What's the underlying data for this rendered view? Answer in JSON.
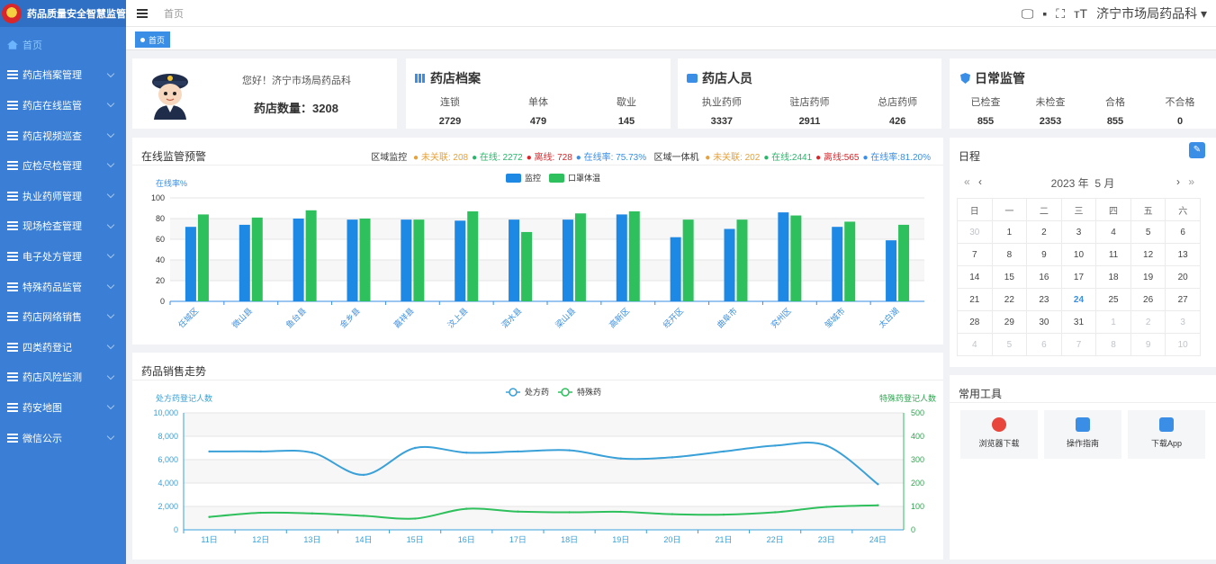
{
  "app": {
    "title": "药品质量安全智慧监管"
  },
  "sidebar": {
    "items": [
      {
        "label": "首页",
        "icon": "home-icon",
        "active": true
      },
      {
        "label": "药店档案管理",
        "icon": "list-icon"
      },
      {
        "label": "药店在线监管",
        "icon": "list-icon"
      },
      {
        "label": "药店视频巡查",
        "icon": "list-icon"
      },
      {
        "label": "应检尽检管理",
        "icon": "list-icon"
      },
      {
        "label": "执业药师管理",
        "icon": "list-icon"
      },
      {
        "label": "现场检查管理",
        "icon": "list-icon"
      },
      {
        "label": "电子处方管理",
        "icon": "list-icon"
      },
      {
        "label": "特殊药品监管",
        "icon": "list-icon"
      },
      {
        "label": "药店网络销售",
        "icon": "list-icon"
      },
      {
        "label": "四类药登记",
        "icon": "list-icon"
      },
      {
        "label": "药店风险监测",
        "icon": "list-icon"
      },
      {
        "label": "药安地图",
        "icon": "list-icon"
      },
      {
        "label": "微信公示",
        "icon": "list-icon"
      }
    ]
  },
  "header": {
    "breadcrumb": "首页",
    "user": "济宁市场局药品科",
    "active_tab": "首页"
  },
  "welcome": {
    "greeting": "您好！济宁市场局药品科",
    "store_count_label": "药店数量：",
    "store_count": "3208"
  },
  "archive": {
    "title": "药店档案",
    "stats": [
      {
        "label": "连锁",
        "value": "2729"
      },
      {
        "label": "单体",
        "value": "479"
      },
      {
        "label": "歇业",
        "value": "145"
      }
    ]
  },
  "staff": {
    "title": "药店人员",
    "stats": [
      {
        "label": "执业药师",
        "value": "3337"
      },
      {
        "label": "驻店药师",
        "value": "2911"
      },
      {
        "label": "总店药师",
        "value": "426"
      }
    ]
  },
  "daily": {
    "title": "日常监管",
    "stats": [
      {
        "label": "已检查",
        "value": "855"
      },
      {
        "label": "未检查",
        "value": "2353"
      },
      {
        "label": "合格",
        "value": "855"
      },
      {
        "label": "不合格",
        "value": "0"
      }
    ]
  },
  "online": {
    "title": "在线监管预警",
    "region_label": "区域监控",
    "region": {
      "unlinked": "未关联: 208",
      "online": "在线: 2272",
      "offline": "离线: 728",
      "rate": "在线率: 75.73%"
    },
    "device_label": "区域一体机",
    "device": {
      "unlinked": "未关联: 202",
      "online": "在线:2441",
      "offline": "离线:565",
      "rate": "在线率:81.20%"
    },
    "colors": {
      "unlinked": "#e6a23c",
      "online": "#2ab56b",
      "offline": "#d8262a",
      "rate": "#3a8ee6"
    }
  },
  "sales": {
    "title": "药品销售走势"
  },
  "schedule": {
    "title": "日程",
    "year_label": "2023 年",
    "month_label": "5 月",
    "weekdays": [
      "日",
      "一",
      "二",
      "三",
      "四",
      "五",
      "六"
    ],
    "weeks": [
      [
        "30",
        "1",
        "2",
        "3",
        "4",
        "5",
        "6"
      ],
      [
        "7",
        "8",
        "9",
        "10",
        "11",
        "12",
        "13"
      ],
      [
        "14",
        "15",
        "16",
        "17",
        "18",
        "19",
        "20"
      ],
      [
        "21",
        "22",
        "23",
        "24",
        "25",
        "26",
        "27"
      ],
      [
        "28",
        "29",
        "30",
        "31",
        "1",
        "2",
        "3"
      ],
      [
        "4",
        "5",
        "6",
        "7",
        "8",
        "9",
        "10"
      ]
    ],
    "today": "24"
  },
  "tools": {
    "title": "常用工具",
    "items": [
      {
        "label": "浏览器下载",
        "icon": "chrome-icon",
        "color": "#e8453c"
      },
      {
        "label": "操作指南",
        "icon": "doc-icon",
        "color": "#3a8ee6"
      },
      {
        "label": "下载App",
        "icon": "app-icon",
        "color": "#3a8ee6"
      }
    ]
  },
  "chart_data": [
    {
      "type": "bar",
      "title": "",
      "ylabel": "在线率%",
      "ylim": [
        0,
        100
      ],
      "yticks": [
        0,
        20,
        40,
        60,
        80,
        100
      ],
      "legend": "top-center",
      "categories": [
        "任城区",
        "微山县",
        "鱼台县",
        "金乡县",
        "嘉祥县",
        "汶上县",
        "泗水县",
        "梁山县",
        "高新区",
        "经开区",
        "曲阜市",
        "兖州区",
        "邹城市",
        "太白湖"
      ],
      "series": [
        {
          "name": "监控",
          "color": "#1e88e5",
          "values": [
            72,
            74,
            80,
            79,
            79,
            78,
            79,
            79,
            84,
            62,
            70,
            86,
            72,
            59
          ]
        },
        {
          "name": "口罩体温",
          "color": "#2ec05c",
          "values": [
            84,
            81,
            88,
            80,
            79,
            87,
            67,
            85,
            87,
            79,
            79,
            83,
            77,
            74
          ]
        }
      ]
    },
    {
      "type": "line",
      "title": "",
      "legend": "top-center",
      "x": [
        "11日",
        "12日",
        "13日",
        "14日",
        "15日",
        "16日",
        "17日",
        "18日",
        "19日",
        "20日",
        "21日",
        "22日",
        "23日",
        "24日"
      ],
      "y_left": {
        "label": "处方药登记人数",
        "ylim": [
          0,
          10000
        ],
        "ticks": [
          "0",
          "2,000",
          "4,000",
          "6,000",
          "8,000",
          "10,000"
        ]
      },
      "y_right": {
        "label": "特殊药登记人数",
        "ylim": [
          0,
          500
        ],
        "ticks": [
          "0",
          "100",
          "200",
          "300",
          "400",
          "500"
        ]
      },
      "series": [
        {
          "name": "处方药",
          "axis": "left",
          "color": "#3aa0d8",
          "values": [
            6700,
            6700,
            6600,
            4700,
            7000,
            6600,
            6700,
            6800,
            6100,
            6200,
            6700,
            7200,
            7200,
            3900
          ]
        },
        {
          "name": "特殊药",
          "axis": "right",
          "color": "#2ec05c",
          "values": [
            55,
            73,
            70,
            60,
            48,
            90,
            78,
            75,
            77,
            67,
            65,
            75,
            98,
            105
          ]
        }
      ]
    }
  ]
}
